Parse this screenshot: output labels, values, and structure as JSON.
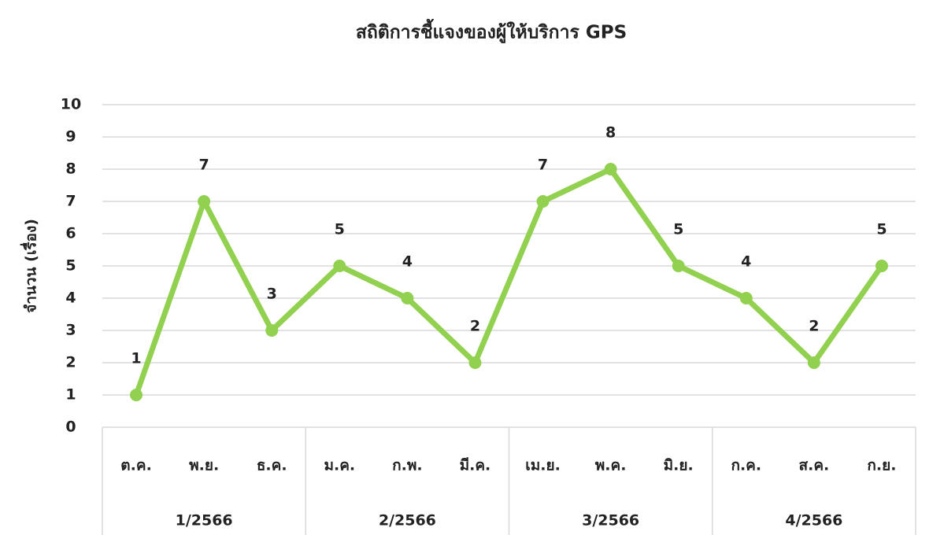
{
  "chart_data": {
    "type": "line",
    "title": "สถิติการชี้แจงของผู้ให้บริการ GPS",
    "y_label": "จำนวน (เรื่อง)",
    "categories": [
      "ต.ค.",
      "พ.ย.",
      "ธ.ค.",
      "ม.ค.",
      "ก.พ.",
      "มี.ค.",
      "เม.ย.",
      "พ.ค.",
      "มิ.ย.",
      "ก.ค.",
      "ส.ค.",
      "ก.ย."
    ],
    "groups": [
      "1/2566",
      "2/2566",
      "3/2566",
      "4/2566"
    ],
    "values": [
      1,
      7,
      3,
      5,
      4,
      2,
      7,
      8,
      5,
      4,
      2,
      5
    ],
    "color": "#92d050",
    "ylim": [
      0,
      10
    ],
    "yticks": [
      0,
      1,
      2,
      3,
      4,
      5,
      6,
      7,
      8,
      9,
      10
    ],
    "grid": true
  }
}
